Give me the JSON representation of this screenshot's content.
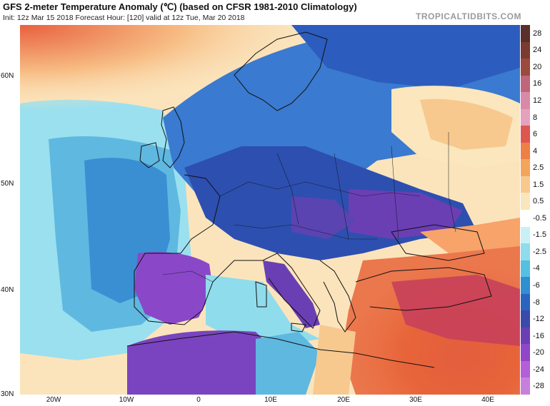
{
  "header": {
    "title": "GFS 2-meter Temperature Anomaly (℃) (based on CFSR 1981-2010 Climatology)",
    "subtitle": "Init: 12z Mar 15 2018   Forecast Hour: [120]   valid at 12z Tue, Mar 20 2018",
    "brand": "TROPICALTIDBITS.COM"
  },
  "map": {
    "lat_labels": [
      "60N",
      "50N",
      "40N",
      "30N"
    ],
    "lon_labels": [
      "20W",
      "10W",
      "0",
      "10E",
      "20E",
      "30E",
      "40E"
    ]
  },
  "colorbar": {
    "labels": [
      "28",
      "24",
      "20",
      "16",
      "12",
      "8",
      "6",
      "4",
      "2.5",
      "1.5",
      "0.5",
      "-0.5",
      "-1.5",
      "-2.5",
      "-4",
      "-6",
      "-8",
      "-12",
      "-16",
      "-20",
      "-24",
      "-28"
    ],
    "colors": [
      "#5a2e2a",
      "#7a3b30",
      "#9b4a3c",
      "#c0667a",
      "#d98aa8",
      "#e4a2bd",
      "#e05550",
      "#ee7f45",
      "#f4a55c",
      "#f7c98e",
      "#fae6bd",
      "#ffffff",
      "#c9f0f6",
      "#8fdcec",
      "#55c0e2",
      "#2f8fd0",
      "#2a64c0",
      "#3b4aa8",
      "#6a3fb4",
      "#9046c8",
      "#b45ed8",
      "#c77fdc"
    ]
  },
  "colors": {
    "land_outline": "#111111",
    "ocean_cool": "#5fb8e0",
    "deep_cold": "#2d4fb0",
    "very_cold": "#7a3fc0",
    "warm": "#e8643a",
    "hot": "#c8405a",
    "mild": "#fbe6b8"
  }
}
